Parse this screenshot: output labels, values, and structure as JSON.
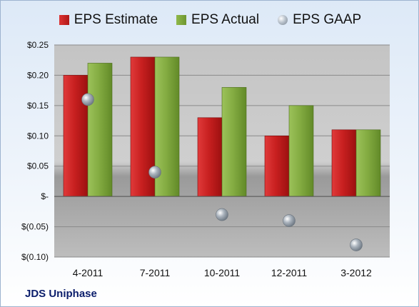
{
  "company": "JDS Uniphase",
  "legend": {
    "estimate": "EPS Estimate",
    "actual": "EPS Actual",
    "gaap": "EPS GAAP"
  },
  "colors": {
    "estimate": "#c41e1e",
    "actual": "#82aa3f",
    "gaap": "#a9b2bc"
  },
  "chart_data": {
    "type": "bar",
    "categories": [
      "4-2011",
      "7-2011",
      "10-2011",
      "12-2011",
      "3-2012"
    ],
    "series": [
      {
        "name": "EPS Estimate",
        "values": [
          0.2,
          0.23,
          0.13,
          0.1,
          0.11
        ]
      },
      {
        "name": "EPS Actual",
        "values": [
          0.22,
          0.23,
          0.18,
          0.15,
          0.11
        ]
      },
      {
        "name": "EPS GAAP",
        "values": [
          0.16,
          0.04,
          -0.03,
          -0.04,
          -0.08
        ]
      }
    ],
    "ylim": [
      -0.1,
      0.25
    ],
    "yticks": [
      0.25,
      0.2,
      0.15,
      0.1,
      0.05,
      0,
      -0.05,
      -0.1
    ],
    "ytick_labels": [
      "$0.25",
      "$0.20",
      "$0.15",
      "$0.10",
      "$0.05",
      "$-",
      "$(0.05)",
      "$(0.10)"
    ],
    "grid": true,
    "legend_position": "top"
  }
}
